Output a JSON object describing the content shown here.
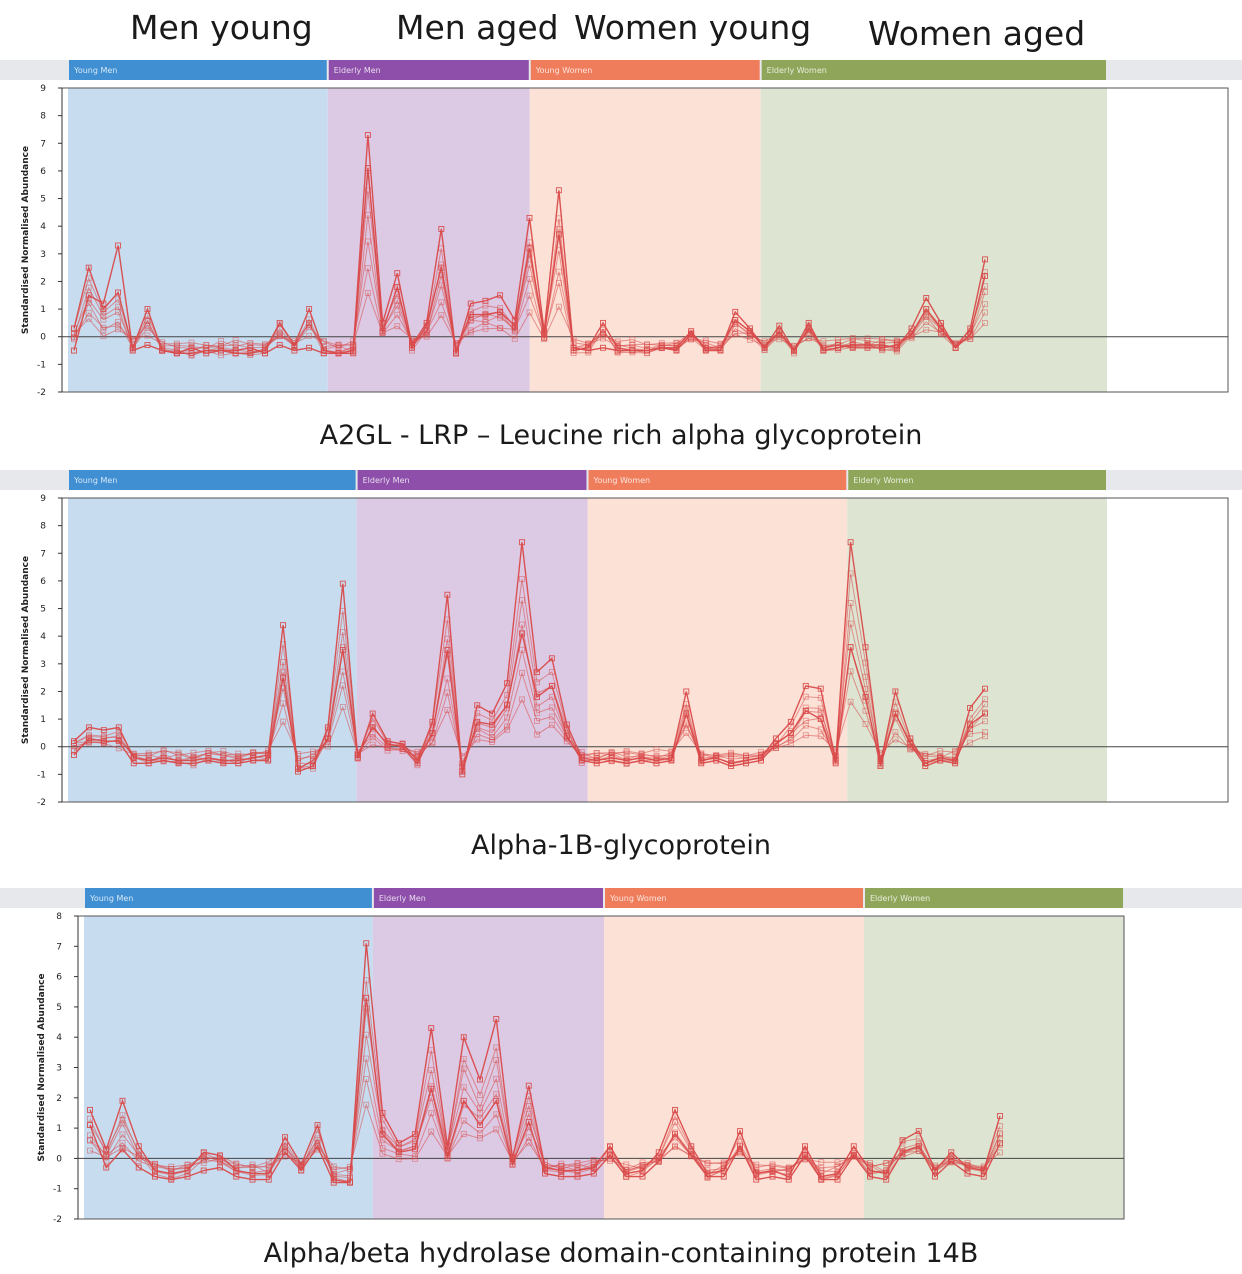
{
  "headings": [
    "Men young",
    "Men aged",
    "Women young",
    "Women aged"
  ],
  "chart_data": [
    {
      "type": "line",
      "caption": "A2GL -  LRP – Leucine rich alpha glycoprotein",
      "ylabel": "Standardised Normalised Abundance",
      "ylim": [
        -2,
        9
      ],
      "yticks": [
        -2,
        -1,
        0,
        1,
        2,
        3,
        4,
        5,
        6,
        7,
        8,
        9
      ],
      "groups": [
        {
          "label": "Young Men",
          "color": "#3f8fd2",
          "bg": "#c7dcef",
          "samples": 18
        },
        {
          "label": "Elderly Men",
          "color": "#8e4faa",
          "bg": "#dcc9e3",
          "samples": 14
        },
        {
          "label": "Young Women",
          "color": "#ef7d5c",
          "bg": "#fbe1d6",
          "samples": 16
        },
        {
          "label": "Elderly Women",
          "color": "#8fa65a",
          "bg": "#dde4d2",
          "samples": 24
        }
      ],
      "highlights": [
        [
          0.3,
          2.5,
          1.0,
          1.6,
          -0.4,
          1.0,
          -0.5,
          -0.6,
          -0.6,
          -0.5,
          -0.5,
          -0.6,
          -0.6,
          -0.5,
          0.5,
          -0.3,
          1.0,
          -0.5,
          -0.6,
          -0.5,
          7.3,
          0.5,
          2.3,
          -0.3,
          0.5,
          3.9,
          -0.6,
          1.2,
          1.3,
          1.5,
          0.6,
          4.3,
          0.2,
          5.3,
          -0.5,
          -0.4,
          0.5,
          -0.4,
          -0.5,
          -0.5,
          -0.4,
          -0.4,
          0.2,
          -0.5,
          -0.5,
          0.9,
          0.3,
          -0.4,
          0.4,
          -0.5,
          0.5,
          -0.5,
          -0.4,
          -0.3,
          -0.3,
          -0.3,
          -0.4,
          0.3,
          1.4,
          0.5,
          -0.4,
          0.3,
          2.8
        ],
        [
          -0.5,
          1.5,
          1.2,
          3.3,
          -0.5,
          -0.3,
          -0.5,
          -0.6,
          -0.4,
          -0.6,
          -0.5,
          -0.5,
          -0.4,
          -0.6,
          -0.3,
          -0.5,
          -0.4,
          -0.6,
          -0.6,
          -0.6,
          6.1,
          0.2,
          1.8,
          -0.4,
          0.4,
          2.5,
          -0.5,
          0.8,
          0.8,
          0.9,
          0.4,
          3.2,
          0.1,
          3.7,
          -0.4,
          -0.5,
          -0.4,
          -0.5,
          -0.5,
          -0.5,
          -0.4,
          -0.5,
          0.1,
          -0.4,
          -0.4,
          0.6,
          0.2,
          -0.4,
          0.2,
          -0.5,
          0.3,
          -0.4,
          -0.3,
          -0.4,
          -0.4,
          -0.4,
          -0.3,
          0.1,
          1.0,
          0.3,
          -0.4,
          0.1,
          2.2
        ]
      ]
    },
    {
      "type": "line",
      "caption": "Alpha-1B-glycoprotein",
      "ylabel": "Standardised Normalised Abundance",
      "ylim": [
        -2,
        9
      ],
      "yticks": [
        -2,
        -1,
        0,
        1,
        2,
        3,
        4,
        5,
        6,
        7,
        8,
        9
      ],
      "groups": [
        {
          "label": "Young Men",
          "color": "#3f8fd2",
          "bg": "#c7dcef",
          "samples": 20
        },
        {
          "label": "Elderly Men",
          "color": "#8e4faa",
          "bg": "#dcc9e3",
          "samples": 16
        },
        {
          "label": "Young Women",
          "color": "#ef7d5c",
          "bg": "#fbe1d6",
          "samples": 18
        },
        {
          "label": "Elderly Women",
          "color": "#8fa65a",
          "bg": "#dde4d2",
          "samples": 18
        }
      ],
      "highlights": [
        [
          0.2,
          0.7,
          0.6,
          0.7,
          -0.4,
          -0.5,
          -0.4,
          -0.5,
          -0.5,
          -0.4,
          -0.5,
          -0.5,
          -0.4,
          -0.3,
          4.4,
          -0.9,
          -0.7,
          0.7,
          5.9,
          -0.4,
          1.2,
          0.2,
          0.1,
          -0.5,
          0.9,
          5.5,
          -1.0,
          1.5,
          1.2,
          2.3,
          7.4,
          2.7,
          3.2,
          0.8,
          -0.4,
          -0.5,
          -0.4,
          -0.5,
          -0.4,
          -0.5,
          -0.4,
          2.0,
          -0.5,
          -0.4,
          -0.6,
          -0.5,
          -0.4,
          0.3,
          0.9,
          2.2,
          2.1,
          -0.5,
          7.4,
          3.6,
          -0.6,
          2.0,
          0.3,
          -0.6,
          -0.4,
          -0.5,
          1.4,
          2.1
        ],
        [
          -0.3,
          0.3,
          0.2,
          0.2,
          -0.6,
          -0.6,
          -0.5,
          -0.6,
          -0.6,
          -0.5,
          -0.6,
          -0.6,
          -0.5,
          -0.5,
          2.5,
          -0.8,
          -0.5,
          0.3,
          3.5,
          -0.3,
          0.7,
          0.1,
          0.0,
          -0.6,
          0.5,
          3.5,
          -0.9,
          0.9,
          0.8,
          1.5,
          4.1,
          1.8,
          2.2,
          0.4,
          -0.5,
          -0.6,
          -0.5,
          -0.6,
          -0.5,
          -0.6,
          -0.5,
          1.2,
          -0.6,
          -0.5,
          -0.7,
          -0.6,
          -0.5,
          0.1,
          0.5,
          1.3,
          1.0,
          -0.6,
          3.6,
          1.8,
          -0.7,
          1.2,
          0.1,
          -0.7,
          -0.5,
          -0.6,
          0.8,
          1.2
        ]
      ]
    },
    {
      "type": "line",
      "caption": "Alpha/beta hydrolase domain-containing protein 14B",
      "ylabel": "Standardised Normalised Abundance",
      "ylim": [
        -2,
        8
      ],
      "yticks": [
        -2,
        -1,
        0,
        1,
        2,
        3,
        4,
        5,
        6,
        7,
        8
      ],
      "groups": [
        {
          "label": "Young Men",
          "color": "#3f8fd2",
          "bg": "#c7dcef",
          "samples": 20
        },
        {
          "label": "Elderly Men",
          "color": "#8e4faa",
          "bg": "#dcc9e3",
          "samples": 16
        },
        {
          "label": "Young Women",
          "color": "#ef7d5c",
          "bg": "#fbe1d6",
          "samples": 18
        },
        {
          "label": "Elderly Women",
          "color": "#8fa65a",
          "bg": "#dde4d2",
          "samples": 18
        }
      ],
      "highlights": [
        [
          1.6,
          0.3,
          1.9,
          0.4,
          -0.4,
          -0.5,
          -0.4,
          0.2,
          0.1,
          -0.4,
          -0.5,
          -0.5,
          0.7,
          -0.2,
          1.1,
          -0.7,
          -0.8,
          7.1,
          1.5,
          0.5,
          0.8,
          4.3,
          0.4,
          4.0,
          2.6,
          4.6,
          0.0,
          2.4,
          -0.3,
          -0.4,
          -0.4,
          -0.3,
          0.4,
          -0.5,
          -0.4,
          0.2,
          1.6,
          0.4,
          -0.5,
          -0.4,
          0.9,
          -0.5,
          -0.4,
          -0.6,
          0.4,
          -0.6,
          -0.5,
          0.4,
          -0.4,
          -0.5,
          0.6,
          0.9,
          -0.4,
          0.2,
          -0.3,
          -0.4,
          1.4
        ],
        [
          1.1,
          -0.3,
          0.3,
          -0.3,
          -0.6,
          -0.7,
          -0.6,
          -0.4,
          -0.3,
          -0.6,
          -0.7,
          -0.7,
          0.2,
          -0.4,
          0.4,
          -0.8,
          -0.8,
          5.3,
          0.8,
          0.2,
          0.3,
          2.3,
          0.1,
          1.9,
          1.1,
          1.9,
          -0.2,
          1.2,
          -0.5,
          -0.6,
          -0.6,
          -0.5,
          0.1,
          -0.6,
          -0.6,
          -0.1,
          0.8,
          0.1,
          -0.6,
          -0.6,
          0.4,
          -0.7,
          -0.6,
          -0.7,
          0.1,
          -0.7,
          -0.7,
          0.1,
          -0.6,
          -0.7,
          0.2,
          0.4,
          -0.6,
          -0.1,
          -0.5,
          -0.6,
          0.5
        ]
      ]
    }
  ]
}
